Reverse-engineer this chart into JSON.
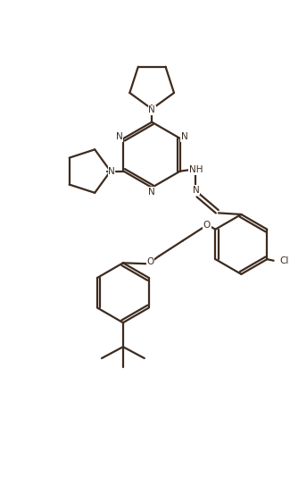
{
  "bg_color": "#ffffff",
  "line_color": "#3d2b1f",
  "line_width": 1.6,
  "figsize": [
    3.25,
    5.44
  ],
  "dpi": 100,
  "xlim": [
    0,
    10
  ],
  "ylim": [
    0,
    16.8
  ]
}
